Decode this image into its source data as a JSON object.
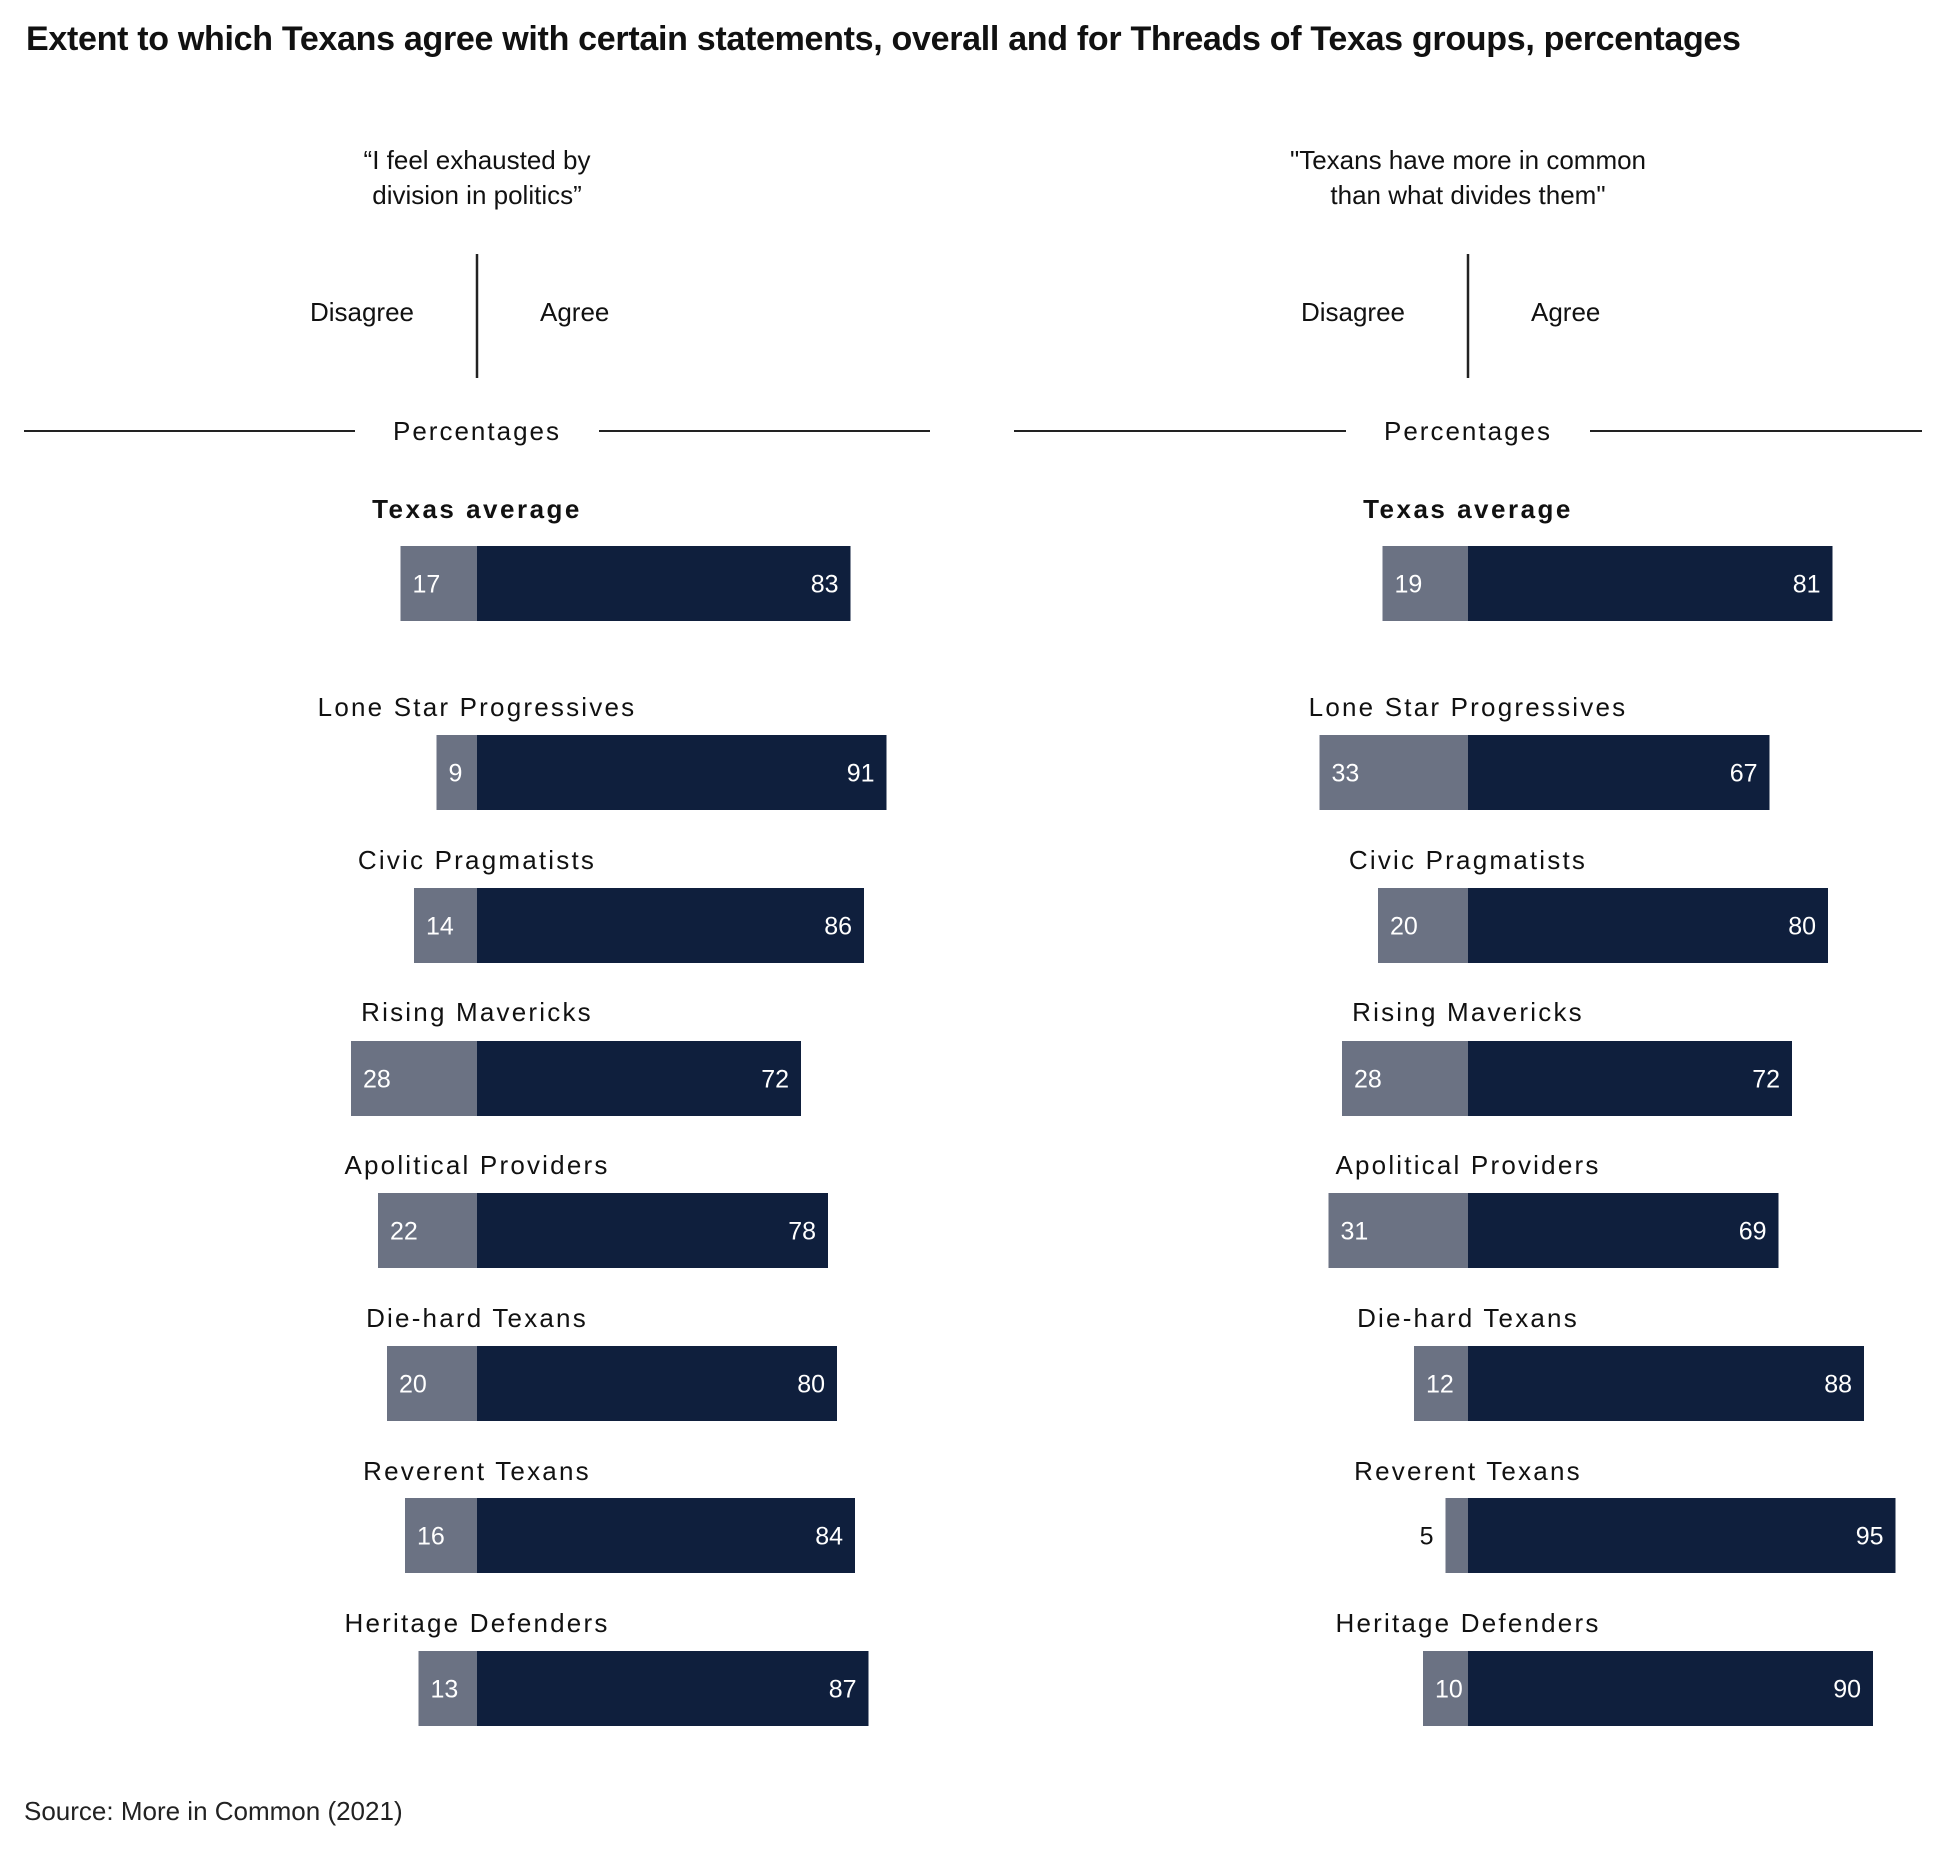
{
  "title": "Extent to which Texans agree with certain statements, overall and for Threads of Texas groups, percentages",
  "source": "Source: More in Common (2021)",
  "colors": {
    "disagree": "#6b7283",
    "agree": "#0f1f3d",
    "text": "#111111",
    "axis": "#222222",
    "label_on_bar": "#ffffff"
  },
  "chart_data": [
    {
      "type": "bar",
      "orientation": "horizontal-diverging",
      "title_lines": [
        "“I feel exhausted by",
        "division in politics”"
      ],
      "negative_label": "Disagree",
      "positive_label": "Agree",
      "axis_caption": "Percentages",
      "categories": [
        "Texas average",
        "Lone Star Progressives",
        "Civic Pragmatists",
        "Rising Mavericks",
        "Apolitical Providers",
        "Die-hard Texans",
        "Reverent Texans",
        "Heritage Defenders"
      ],
      "series": [
        {
          "name": "Disagree",
          "values": [
            17,
            9,
            14,
            28,
            22,
            20,
            16,
            13
          ]
        },
        {
          "name": "Agree",
          "values": [
            83,
            91,
            86,
            72,
            78,
            80,
            84,
            87
          ]
        }
      ],
      "xlim": [
        -100,
        100
      ],
      "grid": false
    },
    {
      "type": "bar",
      "orientation": "horizontal-diverging",
      "title_lines": [
        "\"Texans have more in common",
        "than what divides them\""
      ],
      "negative_label": "Disagree",
      "positive_label": "Agree",
      "axis_caption": "Percentages",
      "categories": [
        "Texas average",
        "Lone Star Progressives",
        "Civic Pragmatists",
        "Rising Mavericks",
        "Apolitical Providers",
        "Die-hard Texans",
        "Reverent Texans",
        "Heritage Defenders"
      ],
      "series": [
        {
          "name": "Disagree",
          "values": [
            19,
            33,
            20,
            28,
            31,
            12,
            5,
            10
          ]
        },
        {
          "name": "Agree",
          "values": [
            81,
            67,
            80,
            72,
            69,
            88,
            95,
            90
          ]
        }
      ],
      "xlim": [
        -100,
        100
      ],
      "grid": false
    }
  ]
}
